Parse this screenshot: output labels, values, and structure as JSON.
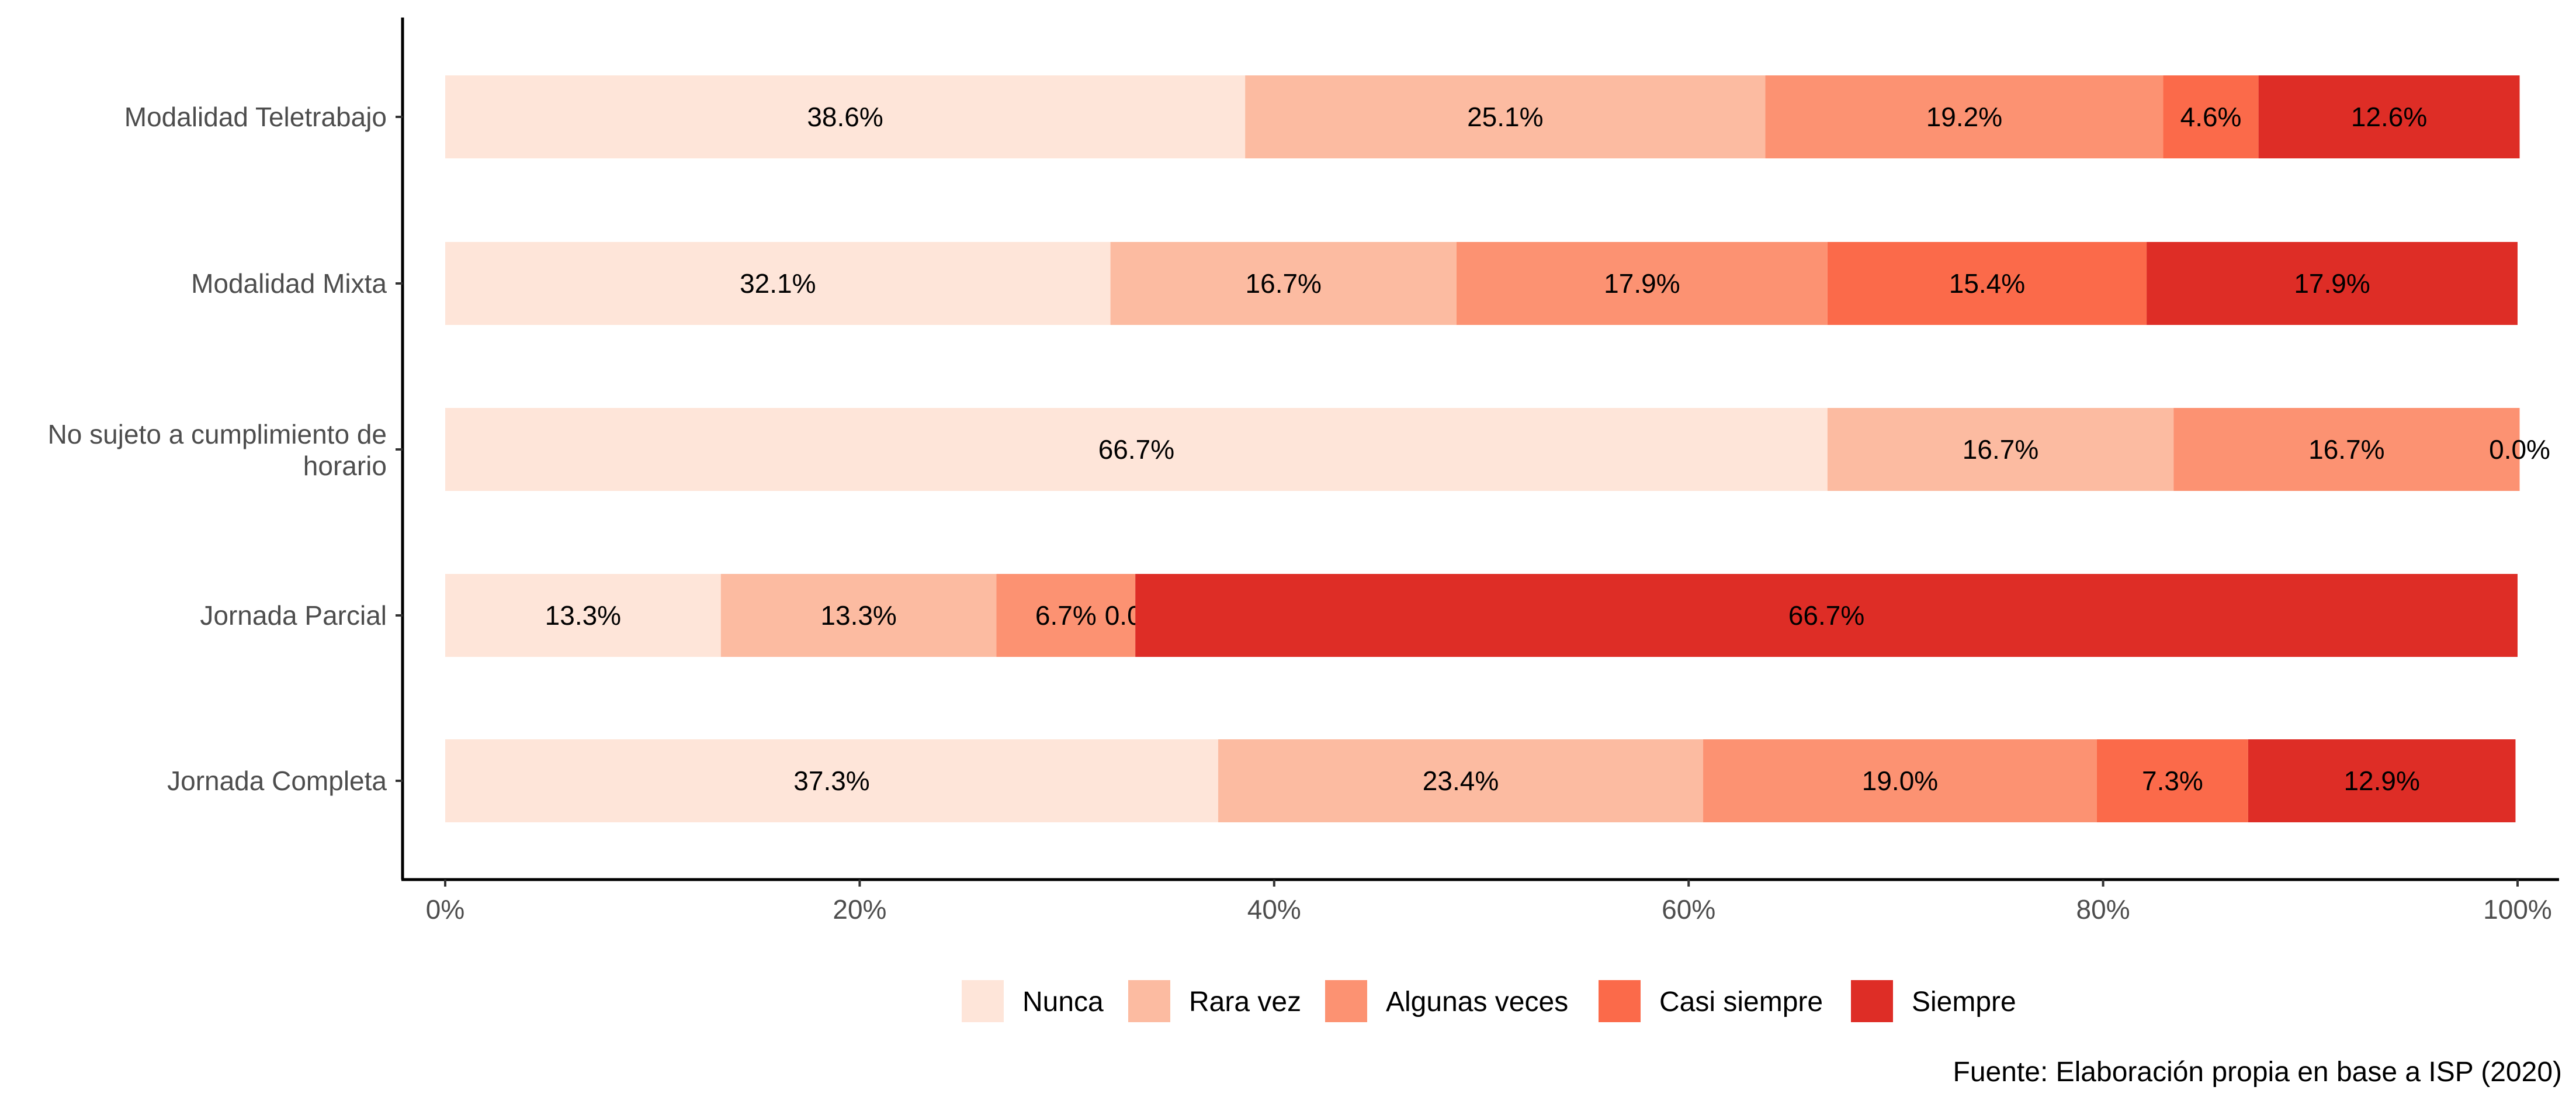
{
  "chart_data": {
    "type": "bar",
    "orientation": "horizontal",
    "stacked": true,
    "categories": [
      "Modalidad Teletrabajo",
      "Modalidad Mixta",
      "No sujeto a cumplimiento de horario",
      "Jornada Parcial",
      "Jornada Completa"
    ],
    "series": [
      {
        "name": "Nunca",
        "color": "#fee5d9",
        "values": [
          38.6,
          32.1,
          66.7,
          13.3,
          37.3
        ],
        "labels": [
          "38.6%",
          "32.1%",
          "66.7%",
          "13.3%",
          "37.3%"
        ]
      },
      {
        "name": "Rara vez",
        "color": "#fcbba1",
        "values": [
          25.1,
          16.7,
          16.7,
          13.3,
          23.4
        ],
        "labels": [
          "25.1%",
          "16.7%",
          "16.7%",
          "13.3%",
          "23.4%"
        ]
      },
      {
        "name": "Algunas veces",
        "color": "#fc9272",
        "values": [
          19.2,
          17.9,
          16.7,
          6.7,
          19.0
        ],
        "labels": [
          "19.2%",
          "17.9%",
          "16.7%",
          "6.7%",
          "19.0%"
        ]
      },
      {
        "name": "Casi siempre",
        "color": "#fb6a4a",
        "values": [
          4.6,
          15.4,
          0.0,
          0.0,
          7.3
        ],
        "labels": [
          "4.6%",
          "15.4%",
          "0.0%",
          "0.0%",
          "7.3%"
        ]
      },
      {
        "name": "Siempre",
        "color": "#de2d26",
        "values": [
          12.6,
          17.9,
          0.0,
          66.7,
          12.9
        ],
        "labels": [
          "12.6%",
          "17.9%",
          "",
          "66.7%",
          "12.9%"
        ]
      }
    ],
    "x_ticks": [
      "0%",
      "20%",
      "40%",
      "60%",
      "80%",
      "100%"
    ],
    "xlim": [
      0,
      100
    ],
    "grid": false,
    "legend_position": "bottom",
    "caption": "Fuente: Elaboración propia en base a ISP (2020)"
  }
}
